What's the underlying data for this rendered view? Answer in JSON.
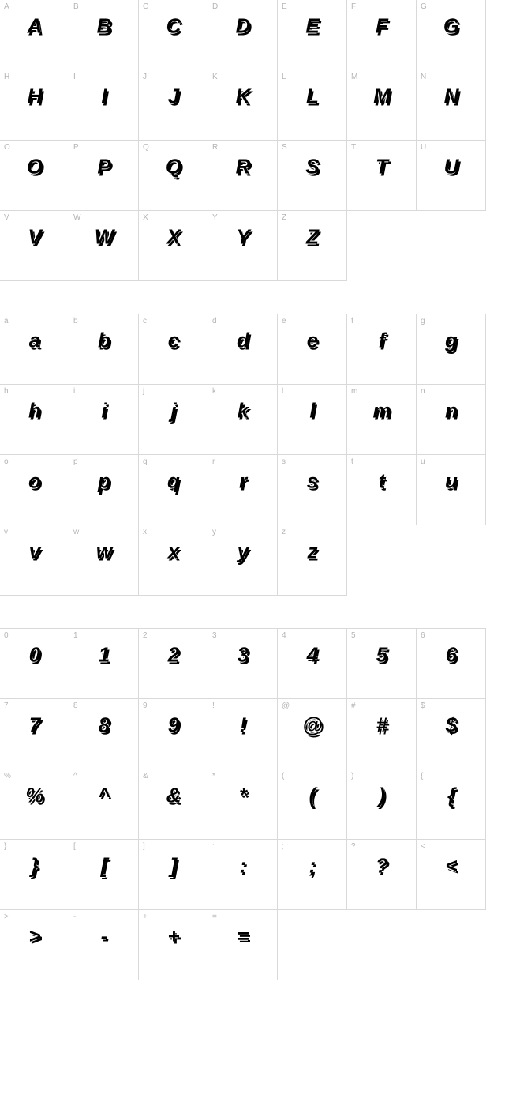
{
  "sections": [
    {
      "id": "uppercase",
      "cells": [
        {
          "label": "A",
          "glyph": "A"
        },
        {
          "label": "B",
          "glyph": "B"
        },
        {
          "label": "C",
          "glyph": "C"
        },
        {
          "label": "D",
          "glyph": "D"
        },
        {
          "label": "E",
          "glyph": "E"
        },
        {
          "label": "F",
          "glyph": "F"
        },
        {
          "label": "G",
          "glyph": "G"
        },
        {
          "label": "H",
          "glyph": "H"
        },
        {
          "label": "I",
          "glyph": "I"
        },
        {
          "label": "J",
          "glyph": "J"
        },
        {
          "label": "K",
          "glyph": "K"
        },
        {
          "label": "L",
          "glyph": "L"
        },
        {
          "label": "M",
          "glyph": "M"
        },
        {
          "label": "N",
          "glyph": "N"
        },
        {
          "label": "O",
          "glyph": "O"
        },
        {
          "label": "P",
          "glyph": "P"
        },
        {
          "label": "Q",
          "glyph": "Q"
        },
        {
          "label": "R",
          "glyph": "R"
        },
        {
          "label": "S",
          "glyph": "S"
        },
        {
          "label": "T",
          "glyph": "T"
        },
        {
          "label": "U",
          "glyph": "U"
        },
        {
          "label": "V",
          "glyph": "V"
        },
        {
          "label": "W",
          "glyph": "W"
        },
        {
          "label": "X",
          "glyph": "X"
        },
        {
          "label": "Y",
          "glyph": "Y"
        },
        {
          "label": "Z",
          "glyph": "Z"
        },
        {
          "empty": true
        },
        {
          "empty": true
        }
      ]
    },
    {
      "id": "lowercase",
      "cells": [
        {
          "label": "a",
          "glyph": "a"
        },
        {
          "label": "b",
          "glyph": "b"
        },
        {
          "label": "c",
          "glyph": "c"
        },
        {
          "label": "d",
          "glyph": "d"
        },
        {
          "label": "e",
          "glyph": "e"
        },
        {
          "label": "f",
          "glyph": "f"
        },
        {
          "label": "g",
          "glyph": "g"
        },
        {
          "label": "h",
          "glyph": "h"
        },
        {
          "label": "i",
          "glyph": "i"
        },
        {
          "label": "j",
          "glyph": "j"
        },
        {
          "label": "k",
          "glyph": "k"
        },
        {
          "label": "l",
          "glyph": "l"
        },
        {
          "label": "m",
          "glyph": "m"
        },
        {
          "label": "n",
          "glyph": "n"
        },
        {
          "label": "o",
          "glyph": "o"
        },
        {
          "label": "p",
          "glyph": "p"
        },
        {
          "label": "q",
          "glyph": "q"
        },
        {
          "label": "r",
          "glyph": "r"
        },
        {
          "label": "s",
          "glyph": "s"
        },
        {
          "label": "t",
          "glyph": "t"
        },
        {
          "label": "u",
          "glyph": "u"
        },
        {
          "label": "v",
          "glyph": "v"
        },
        {
          "label": "w",
          "glyph": "w"
        },
        {
          "label": "x",
          "glyph": "x"
        },
        {
          "label": "y",
          "glyph": "y"
        },
        {
          "label": "z",
          "glyph": "z"
        },
        {
          "empty": true
        },
        {
          "empty": true
        }
      ]
    },
    {
      "id": "symbols",
      "cells": [
        {
          "label": "0",
          "glyph": "0"
        },
        {
          "label": "1",
          "glyph": "1"
        },
        {
          "label": "2",
          "glyph": "2"
        },
        {
          "label": "3",
          "glyph": "3"
        },
        {
          "label": "4",
          "glyph": "4"
        },
        {
          "label": "5",
          "glyph": "5"
        },
        {
          "label": "6",
          "glyph": "6"
        },
        {
          "label": "7",
          "glyph": "7"
        },
        {
          "label": "8",
          "glyph": "8"
        },
        {
          "label": "9",
          "glyph": "9"
        },
        {
          "label": "!",
          "glyph": "!"
        },
        {
          "label": "@",
          "glyph": "@"
        },
        {
          "label": "#",
          "glyph": "#"
        },
        {
          "label": "$",
          "glyph": "$"
        },
        {
          "label": "%",
          "glyph": "%"
        },
        {
          "label": "^",
          "glyph": "^"
        },
        {
          "label": "&",
          "glyph": "&"
        },
        {
          "label": "*",
          "glyph": "*"
        },
        {
          "label": "(",
          "glyph": "("
        },
        {
          "label": ")",
          "glyph": ")"
        },
        {
          "label": "{",
          "glyph": "{"
        },
        {
          "label": "}",
          "glyph": "}"
        },
        {
          "label": "[",
          "glyph": "["
        },
        {
          "label": "]",
          "glyph": "]"
        },
        {
          "label": ":",
          "glyph": ":"
        },
        {
          "label": ";",
          "glyph": ";"
        },
        {
          "label": "?",
          "glyph": "?"
        },
        {
          "label": "<",
          "glyph": "<"
        },
        {
          "label": ">",
          "glyph": ">"
        },
        {
          "label": "-",
          "glyph": "-"
        },
        {
          "label": "+",
          "glyph": "+"
        },
        {
          "label": "=",
          "glyph": "="
        },
        {
          "empty": true
        },
        {
          "empty": true
        },
        {
          "empty": true
        }
      ]
    }
  ]
}
